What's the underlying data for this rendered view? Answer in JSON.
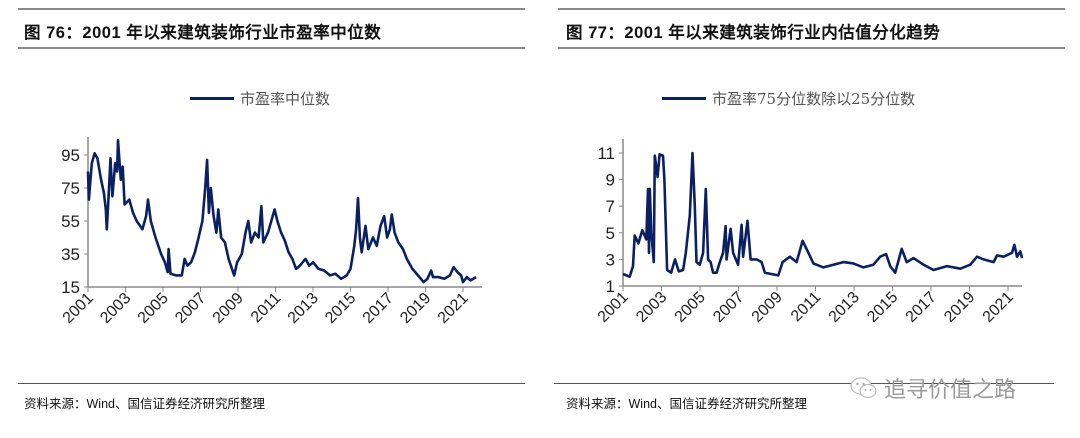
{
  "panels": [
    {
      "title": "图 76：2001 年以来建筑装饰行业市盈率中位数",
      "legend": "市盈率中位数",
      "source": "资料来源：Wind、国信证券经济研究所整理"
    },
    {
      "title": "图 77：2001 年以来建筑装饰行业内估值分化趋势",
      "legend": "市盈率75分位数除以25分位数",
      "source": "资料来源：Wind、国信证券经济研究所整理"
    }
  ],
  "watermark": {
    "text": "追寻价值之路",
    "icon": "wechat-icon"
  },
  "colors": {
    "series": "#0b2063",
    "axis": "#8a8a8a"
  },
  "chart_data": [
    {
      "type": "line",
      "title": "2001 年以来建筑装饰行业市盈率中位数",
      "xlabel": "",
      "ylabel": "",
      "legend": [
        "市盈率中位数"
      ],
      "legend_position": "top-center",
      "xlim": [
        2001,
        2022
      ],
      "ylim": [
        15,
        105
      ],
      "xticks": [
        "2001",
        "2003",
        "2005",
        "2007",
        "2009",
        "2011",
        "2013",
        "2015",
        "2017",
        "2019",
        "2021"
      ],
      "yticks": [
        "15",
        "35",
        "55",
        "75",
        "95"
      ],
      "grid": false,
      "series": [
        {
          "name": "市盈率中位数",
          "points": [
            [
              2001.0,
              85
            ],
            [
              2001.05,
              68
            ],
            [
              2001.2,
              90
            ],
            [
              2001.35,
              96
            ],
            [
              2001.5,
              93
            ],
            [
              2001.7,
              80
            ],
            [
              2001.85,
              72
            ],
            [
              2001.95,
              62
            ],
            [
              2002.0,
              50
            ],
            [
              2002.1,
              70
            ],
            [
              2002.2,
              93
            ],
            [
              2002.3,
              70
            ],
            [
              2002.45,
              90
            ],
            [
              2002.55,
              85
            ],
            [
              2002.6,
              104
            ],
            [
              2002.75,
              80
            ],
            [
              2002.85,
              88
            ],
            [
              2002.95,
              65
            ],
            [
              2003.2,
              68
            ],
            [
              2003.4,
              60
            ],
            [
              2003.6,
              55
            ],
            [
              2003.9,
              50
            ],
            [
              2004.1,
              58
            ],
            [
              2004.2,
              68
            ],
            [
              2004.35,
              55
            ],
            [
              2004.6,
              45
            ],
            [
              2004.9,
              35
            ],
            [
              2005.1,
              30
            ],
            [
              2005.25,
              24
            ],
            [
              2005.3,
              38
            ],
            [
              2005.4,
              23
            ],
            [
              2005.7,
              22
            ],
            [
              2006.0,
              22
            ],
            [
              2006.15,
              32
            ],
            [
              2006.3,
              28
            ],
            [
              2006.5,
              30
            ],
            [
              2006.7,
              36
            ],
            [
              2006.9,
              45
            ],
            [
              2007.1,
              55
            ],
            [
              2007.25,
              75
            ],
            [
              2007.35,
              92
            ],
            [
              2007.45,
              60
            ],
            [
              2007.55,
              75
            ],
            [
              2007.7,
              58
            ],
            [
              2007.85,
              48
            ],
            [
              2007.95,
              62
            ],
            [
              2008.1,
              45
            ],
            [
              2008.3,
              42
            ],
            [
              2008.5,
              32
            ],
            [
              2008.8,
              22
            ],
            [
              2008.95,
              30
            ],
            [
              2009.2,
              35
            ],
            [
              2009.4,
              48
            ],
            [
              2009.55,
              55
            ],
            [
              2009.7,
              42
            ],
            [
              2009.9,
              48
            ],
            [
              2010.1,
              45
            ],
            [
              2010.25,
              64
            ],
            [
              2010.35,
              42
            ],
            [
              2010.6,
              48
            ],
            [
              2010.95,
              62
            ],
            [
              2011.1,
              55
            ],
            [
              2011.3,
              48
            ],
            [
              2011.5,
              43
            ],
            [
              2011.7,
              36
            ],
            [
              2011.9,
              32
            ],
            [
              2012.1,
              26
            ],
            [
              2012.3,
              28
            ],
            [
              2012.6,
              32
            ],
            [
              2012.8,
              28
            ],
            [
              2013.0,
              30
            ],
            [
              2013.3,
              26
            ],
            [
              2013.6,
              25
            ],
            [
              2013.9,
              22
            ],
            [
              2014.2,
              23
            ],
            [
              2014.5,
              20
            ],
            [
              2014.8,
              22
            ],
            [
              2015.0,
              26
            ],
            [
              2015.2,
              40
            ],
            [
              2015.3,
              50
            ],
            [
              2015.4,
              69
            ],
            [
              2015.5,
              45
            ],
            [
              2015.6,
              36
            ],
            [
              2015.8,
              52
            ],
            [
              2015.95,
              38
            ],
            [
              2016.2,
              45
            ],
            [
              2016.4,
              40
            ],
            [
              2016.6,
              52
            ],
            [
              2016.8,
              58
            ],
            [
              2016.95,
              45
            ],
            [
              2017.1,
              50
            ],
            [
              2017.2,
              59
            ],
            [
              2017.35,
              48
            ],
            [
              2017.55,
              42
            ],
            [
              2017.8,
              38
            ],
            [
              2018.0,
              32
            ],
            [
              2018.3,
              26
            ],
            [
              2018.6,
              22
            ],
            [
              2018.9,
              18
            ],
            [
              2019.1,
              20
            ],
            [
              2019.3,
              25
            ],
            [
              2019.4,
              21
            ],
            [
              2019.7,
              21
            ],
            [
              2020.0,
              20
            ],
            [
              2020.3,
              22
            ],
            [
              2020.5,
              27
            ],
            [
              2020.7,
              24
            ],
            [
              2020.9,
              22
            ],
            [
              2021.0,
              18
            ],
            [
              2021.2,
              21
            ],
            [
              2021.4,
              19
            ],
            [
              2021.7,
              21
            ]
          ]
        }
      ]
    },
    {
      "type": "line",
      "title": "2001 年以来建筑装饰行业内估值分化趋势",
      "xlabel": "",
      "ylabel": "",
      "legend": [
        "市盈率75分位数除以25分位数"
      ],
      "legend_position": "top-center",
      "xlim": [
        2001,
        2022
      ],
      "ylim": [
        1,
        12
      ],
      "xticks": [
        "2001",
        "2003",
        "2005",
        "2007",
        "2009",
        "2011",
        "2013",
        "2015",
        "2017",
        "2019",
        "2021"
      ],
      "yticks": [
        "1",
        "3",
        "5",
        "7",
        "9",
        "11"
      ],
      "grid": false,
      "series": [
        {
          "name": "市盈率75分位数除以25分位数",
          "points": [
            [
              2001.0,
              1.9
            ],
            [
              2001.35,
              1.7
            ],
            [
              2001.52,
              2.5
            ],
            [
              2001.61,
              4.8
            ],
            [
              2001.8,
              4.2
            ],
            [
              2002.0,
              5.2
            ],
            [
              2002.21,
              4.5
            ],
            [
              2002.3,
              8.3
            ],
            [
              2002.35,
              3.5
            ],
            [
              2002.39,
              8.3
            ],
            [
              2002.47,
              5.0
            ],
            [
              2002.6,
              2.8
            ],
            [
              2002.65,
              10.8
            ],
            [
              2002.8,
              9.2
            ],
            [
              2002.9,
              10.9
            ],
            [
              2003.08,
              10.8
            ],
            [
              2003.15,
              9.0
            ],
            [
              2003.29,
              2.2
            ],
            [
              2003.5,
              2.0
            ],
            [
              2003.7,
              3.0
            ],
            [
              2003.9,
              2.1
            ],
            [
              2004.12,
              2.2
            ],
            [
              2004.26,
              3.5
            ],
            [
              2004.47,
              6.3
            ],
            [
              2004.61,
              11.0
            ],
            [
              2004.73,
              7.0
            ],
            [
              2004.82,
              2.8
            ],
            [
              2004.99,
              2.6
            ],
            [
              2005.16,
              3.5
            ],
            [
              2005.3,
              8.3
            ],
            [
              2005.42,
              3.0
            ],
            [
              2005.55,
              2.8
            ],
            [
              2005.68,
              2.0
            ],
            [
              2005.86,
              2.0
            ],
            [
              2006.03,
              2.8
            ],
            [
              2006.2,
              3.5
            ],
            [
              2006.33,
              5.5
            ],
            [
              2006.38,
              3.0
            ],
            [
              2006.59,
              5.3
            ],
            [
              2006.72,
              3.5
            ],
            [
              2006.98,
              2.6
            ],
            [
              2007.16,
              5.6
            ],
            [
              2007.24,
              3.2
            ],
            [
              2007.47,
              5.9
            ],
            [
              2007.63,
              3.0
            ],
            [
              2007.94,
              3.0
            ],
            [
              2008.2,
              2.8
            ],
            [
              2008.37,
              2.0
            ],
            [
              2008.7,
              1.9
            ],
            [
              2009.07,
              1.8
            ],
            [
              2009.29,
              2.8
            ],
            [
              2009.67,
              3.2
            ],
            [
              2010.02,
              2.8
            ],
            [
              2010.33,
              4.4
            ],
            [
              2010.63,
              3.5
            ],
            [
              2010.89,
              2.7
            ],
            [
              2011.41,
              2.4
            ],
            [
              2011.93,
              2.6
            ],
            [
              2012.45,
              2.8
            ],
            [
              2012.97,
              2.7
            ],
            [
              2013.49,
              2.4
            ],
            [
              2014.01,
              2.6
            ],
            [
              2014.36,
              3.2
            ],
            [
              2014.67,
              3.4
            ],
            [
              2014.88,
              2.5
            ],
            [
              2015.14,
              2.0
            ],
            [
              2015.48,
              3.8
            ],
            [
              2015.74,
              2.8
            ],
            [
              2016.09,
              3.1
            ],
            [
              2016.61,
              2.6
            ],
            [
              2017.13,
              2.2
            ],
            [
              2017.83,
              2.5
            ],
            [
              2018.52,
              2.3
            ],
            [
              2019.04,
              2.6
            ],
            [
              2019.39,
              3.2
            ],
            [
              2019.73,
              3.0
            ],
            [
              2020.25,
              2.8
            ],
            [
              2020.43,
              3.3
            ],
            [
              2020.77,
              3.2
            ],
            [
              2021.21,
              3.5
            ],
            [
              2021.33,
              4.1
            ],
            [
              2021.47,
              3.2
            ],
            [
              2021.64,
              3.6
            ],
            [
              2021.73,
              3.1
            ]
          ]
        }
      ]
    }
  ]
}
